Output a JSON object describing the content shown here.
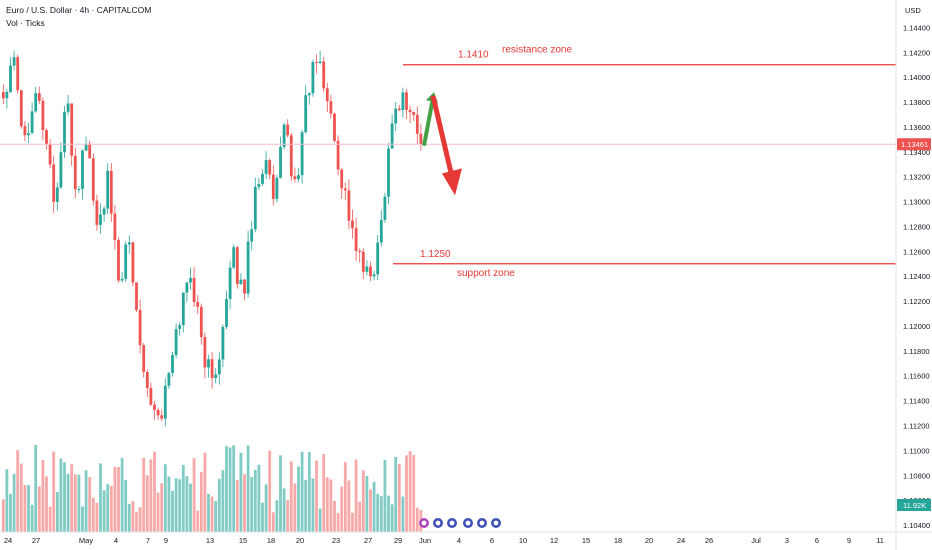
{
  "header": {
    "title": "Euro / U.S. Dollar · 4h · CAPITALCOM",
    "indicator": "Vol · Ticks",
    "currency": "USD"
  },
  "colors": {
    "up": "#26a69a",
    "down": "#ef5350",
    "vol_up": "#80cbc4",
    "vol_down": "#f7a9a7",
    "annotation": "#e53935",
    "current_price_line": "#f8bbd0",
    "up_arrow": "#43a047",
    "down_arrow": "#e53935",
    "event_icon": "#3f51b5"
  },
  "chart_data": {
    "type": "candlestick",
    "symbol": "EURUSD",
    "timeframe": "4h",
    "y_range": [
      1.1036,
      1.1454
    ],
    "y_ticks": [
      1.144,
      1.142,
      1.14,
      1.138,
      1.136,
      1.134,
      1.132,
      1.13,
      1.128,
      1.126,
      1.124,
      1.122,
      1.12,
      1.118,
      1.116,
      1.114,
      1.112,
      1.11,
      1.108,
      1.106,
      1.104
    ],
    "y_tick_labels": [
      "1.14400",
      "1.14200",
      "1.14000",
      "1.13800",
      "1.13600",
      "1.13400",
      "1.13200",
      "1.13000",
      "1.12800",
      "1.12600",
      "1.12400",
      "1.12200",
      "1.12000",
      "1.11800",
      "1.11600",
      "1.11400",
      "1.11200",
      "1.11000",
      "1.10800",
      "1.10600",
      "1.10400"
    ],
    "x_tick_labels": [
      "24",
      "27",
      "May",
      "4",
      "7",
      "9",
      "13",
      "15",
      "18",
      "20",
      "23",
      "27",
      "29",
      "Jun",
      "4",
      "6",
      "10",
      "12",
      "15",
      "18",
      "20",
      "24",
      "26",
      "Jul",
      "3",
      "6",
      "9",
      "11"
    ],
    "current_price": 1.13461,
    "current_price_label": "1.13461",
    "volume_label": "11.92K",
    "approx_price_path": [
      1.1385,
      1.1425,
      1.1345,
      1.1395,
      1.1355,
      1.1295,
      1.1385,
      1.1305,
      1.1355,
      1.1275,
      1.1315,
      1.1235,
      1.1265,
      1.1195,
      1.1145,
      1.1125,
      1.1165,
      1.1215,
      1.1245,
      1.1185,
      1.1155,
      1.1195,
      1.1255,
      1.1225,
      1.1305,
      1.1335,
      1.1295,
      1.1365,
      1.1305,
      1.1385,
      1.1415,
      1.1385,
      1.1335,
      1.1295,
      1.1255,
      1.1235,
      1.1265,
      1.1355,
      1.1385,
      1.1375,
      1.1346
    ],
    "annotations": [
      {
        "type": "horizontal_line",
        "price": 1.141,
        "label": "1.1410",
        "text": "resistance zone"
      },
      {
        "type": "horizontal_line",
        "price": 1.125,
        "label": "1.1250",
        "text": "support zone"
      },
      {
        "type": "arrow_up",
        "from": 1.1345,
        "to": 1.1388
      },
      {
        "type": "arrow_down",
        "from": 1.1385,
        "to": 1.1305
      }
    ]
  }
}
